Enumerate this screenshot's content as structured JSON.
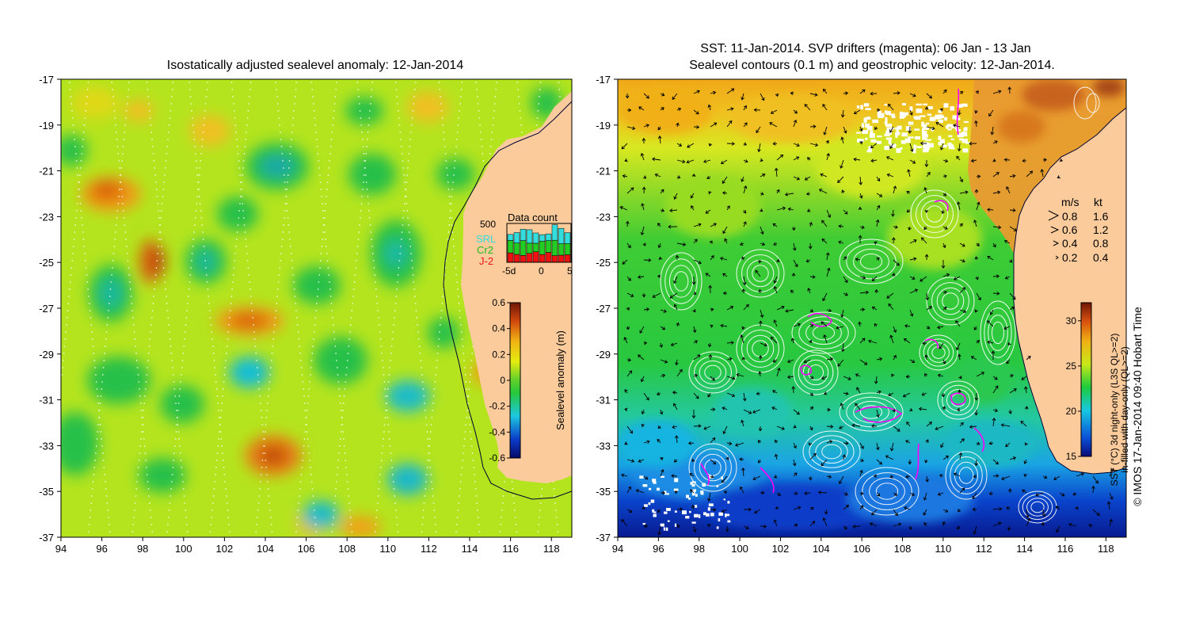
{
  "left_panel": {
    "title": "Isostatically adjusted sealevel anomaly: 12-Jan-2014",
    "x_ticks": [
      "94",
      "96",
      "98",
      "100",
      "102",
      "104",
      "106",
      "108",
      "110",
      "112",
      "114",
      "116",
      "118"
    ],
    "y_ticks": [
      "-17",
      "-19",
      "-21",
      "-23",
      "-25",
      "-27",
      "-29",
      "-31",
      "-33",
      "-35",
      "-37"
    ],
    "colorbar": {
      "label": "Sealevel anomaly (m)",
      "ticks": [
        "0.6",
        "0.4",
        "0.2",
        "0",
        "-0.2",
        "-0.4",
        "-0.6"
      ],
      "range": [
        -0.6,
        0.6
      ]
    },
    "data_count": {
      "title": "Data count",
      "y_label": "500",
      "x_ticks": [
        "-5d",
        "0",
        "5"
      ],
      "legend": [
        "SRL",
        "Cr2",
        "J-2"
      ],
      "legend_colors": [
        "#33dddd",
        "#22cc22",
        "#ee1111"
      ]
    }
  },
  "right_panel": {
    "title_line1": "SST: 11-Jan-2014. SVP drifters (magenta): 06 Jan - 13 Jan",
    "title_line2": "Sealevel contours (0.1 m) and geostrophic velocity: 12-Jan-2014.",
    "x_ticks": [
      "94",
      "96",
      "98",
      "100",
      "102",
      "104",
      "106",
      "108",
      "110",
      "112",
      "114",
      "116",
      "118"
    ],
    "y_ticks": [
      "-17",
      "-19",
      "-21",
      "-23",
      "-25",
      "-27",
      "-29",
      "-31",
      "-33",
      "-35",
      "-37"
    ],
    "speed_legend": {
      "header_ms": "m/s",
      "header_kt": "kt",
      "rows": [
        {
          "ms": "0.8",
          "kt": "1.6"
        },
        {
          "ms": "0.6",
          "kt": "1.2"
        },
        {
          "ms": "0.4",
          "kt": "0.8"
        },
        {
          "ms": "0.2",
          "kt": "0.4"
        }
      ]
    },
    "colorbar": {
      "label_line1": "SST (°C) 3d night-only (L3S QL>=2)",
      "label_line2": "in-filled with day-only (QL>=2)",
      "ticks": [
        "30",
        "25",
        "20",
        "15"
      ],
      "range": [
        15,
        32
      ]
    }
  },
  "credit": "© IMOS 17-Jan-2014 09:40 Hobart Time",
  "colors": {
    "land": "#fbcb9c",
    "drifter": "#ff00ff",
    "contour": "#ffffff"
  }
}
